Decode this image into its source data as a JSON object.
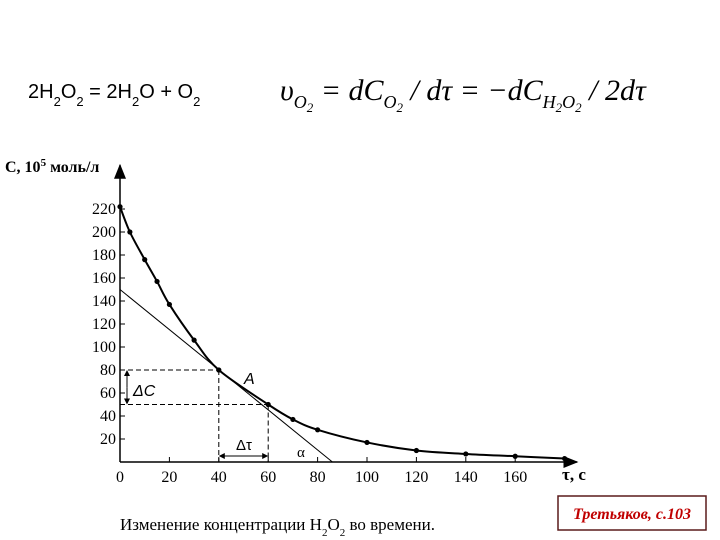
{
  "chart_data": {
    "type": "line",
    "equation": [
      "2H",
      "2",
      "O",
      "2",
      " = 2H",
      "2",
      "O + O",
      "2"
    ],
    "rate_formula": [
      {
        "t": "υ",
        "lvl": 0
      },
      {
        "t": "O",
        "lvl": 1
      },
      {
        "t": "2",
        "lvl": 2
      },
      {
        "t": " = dC",
        "lvl": 0
      },
      {
        "t": "O",
        "lvl": 1
      },
      {
        "t": "2",
        "lvl": 2
      },
      {
        "t": " / dτ = −dC",
        "lvl": 0
      },
      {
        "t": "H",
        "lvl": 1
      },
      {
        "t": "2",
        "lvl": 2
      },
      {
        "t": "O",
        "lvl": 1
      },
      {
        "t": "2",
        "lvl": 2
      },
      {
        "t": " / 2dτ",
        "lvl": 0
      }
    ],
    "ylabel": [
      "C,  10",
      "5",
      " моль/л"
    ],
    "xlabel": "τ, с",
    "caption": [
      "Изменение концентрации H",
      "2",
      "O",
      "2",
      " во времени."
    ],
    "reference": "Третьяков, с.103",
    "x": [
      0,
      4,
      10,
      15,
      20,
      30,
      40,
      60,
      70,
      80,
      100,
      120,
      140,
      160,
      180
    ],
    "series": [
      {
        "name": "C",
        "color": "#000000",
        "values": [
          222,
          200,
          176,
          157,
          137,
          106,
          80,
          50,
          37,
          28,
          17,
          10,
          7,
          5,
          3
        ]
      }
    ],
    "tangent": {
      "x": [
        0,
        86
      ],
      "y": [
        150,
        0
      ]
    },
    "annotations": {
      "point": "A",
      "delta_c": "ΔC",
      "delta_t": "Δτ",
      "angle": "α"
    },
    "xlim": [
      0,
      185
    ],
    "ylim": [
      0,
      258
    ],
    "xticks": [
      0,
      20,
      40,
      60,
      80,
      100,
      120,
      140,
      160
    ],
    "yticks": [
      20,
      40,
      60,
      80,
      100,
      120,
      140,
      160,
      180,
      200,
      220
    ]
  }
}
